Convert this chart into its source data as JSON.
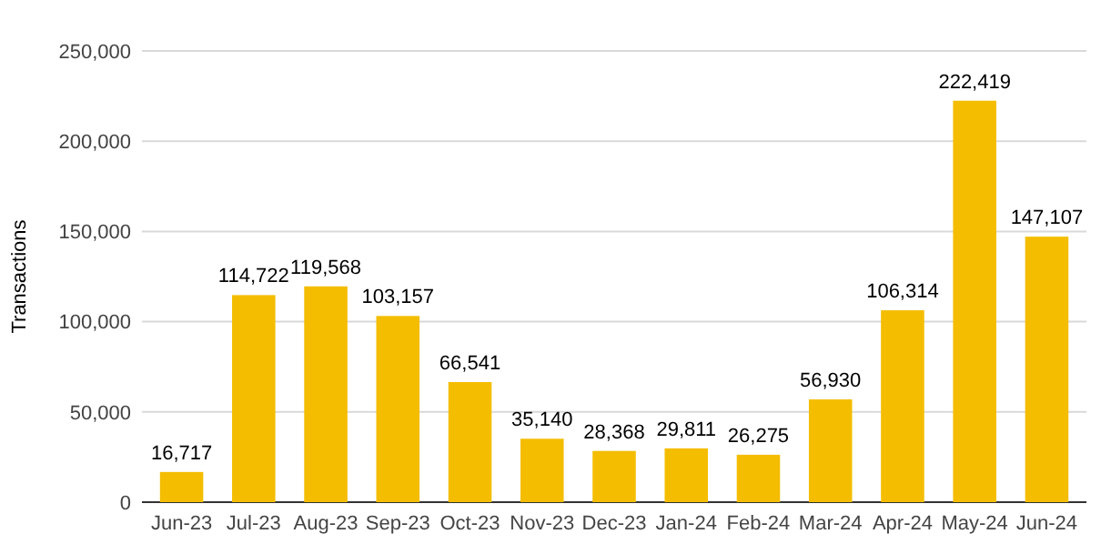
{
  "chart_data": {
    "type": "bar",
    "ylabel": "Transactions",
    "categories": [
      "Jun-23",
      "Jul-23",
      "Aug-23",
      "Sep-23",
      "Oct-23",
      "Nov-23",
      "Dec-23",
      "Jan-24",
      "Feb-24",
      "Mar-24",
      "Apr-24",
      "May-24",
      "Jun-24"
    ],
    "values": [
      16717,
      114722,
      119568,
      103157,
      66541,
      35140,
      28368,
      29811,
      26275,
      56930,
      106314,
      222419,
      147107
    ],
    "color": "#f4bd00",
    "ylim": [
      0,
      250000
    ],
    "yticks": [
      {
        "value": 0,
        "label": "0"
      },
      {
        "value": 50000,
        "label": "50,000"
      },
      {
        "value": 100000,
        "label": "100,000"
      },
      {
        "value": 150000,
        "label": "150,000"
      },
      {
        "value": 200000,
        "label": "200,000"
      },
      {
        "value": 250000,
        "label": "250,000"
      }
    ],
    "value_labels": [
      "16,717",
      "114,722",
      "119,568",
      "103,157",
      "66,541",
      "35,140",
      "28,368",
      "29,811",
      "26,275",
      "56,930",
      "106,314",
      "222,419",
      "147,107"
    ],
    "grid": "y"
  }
}
